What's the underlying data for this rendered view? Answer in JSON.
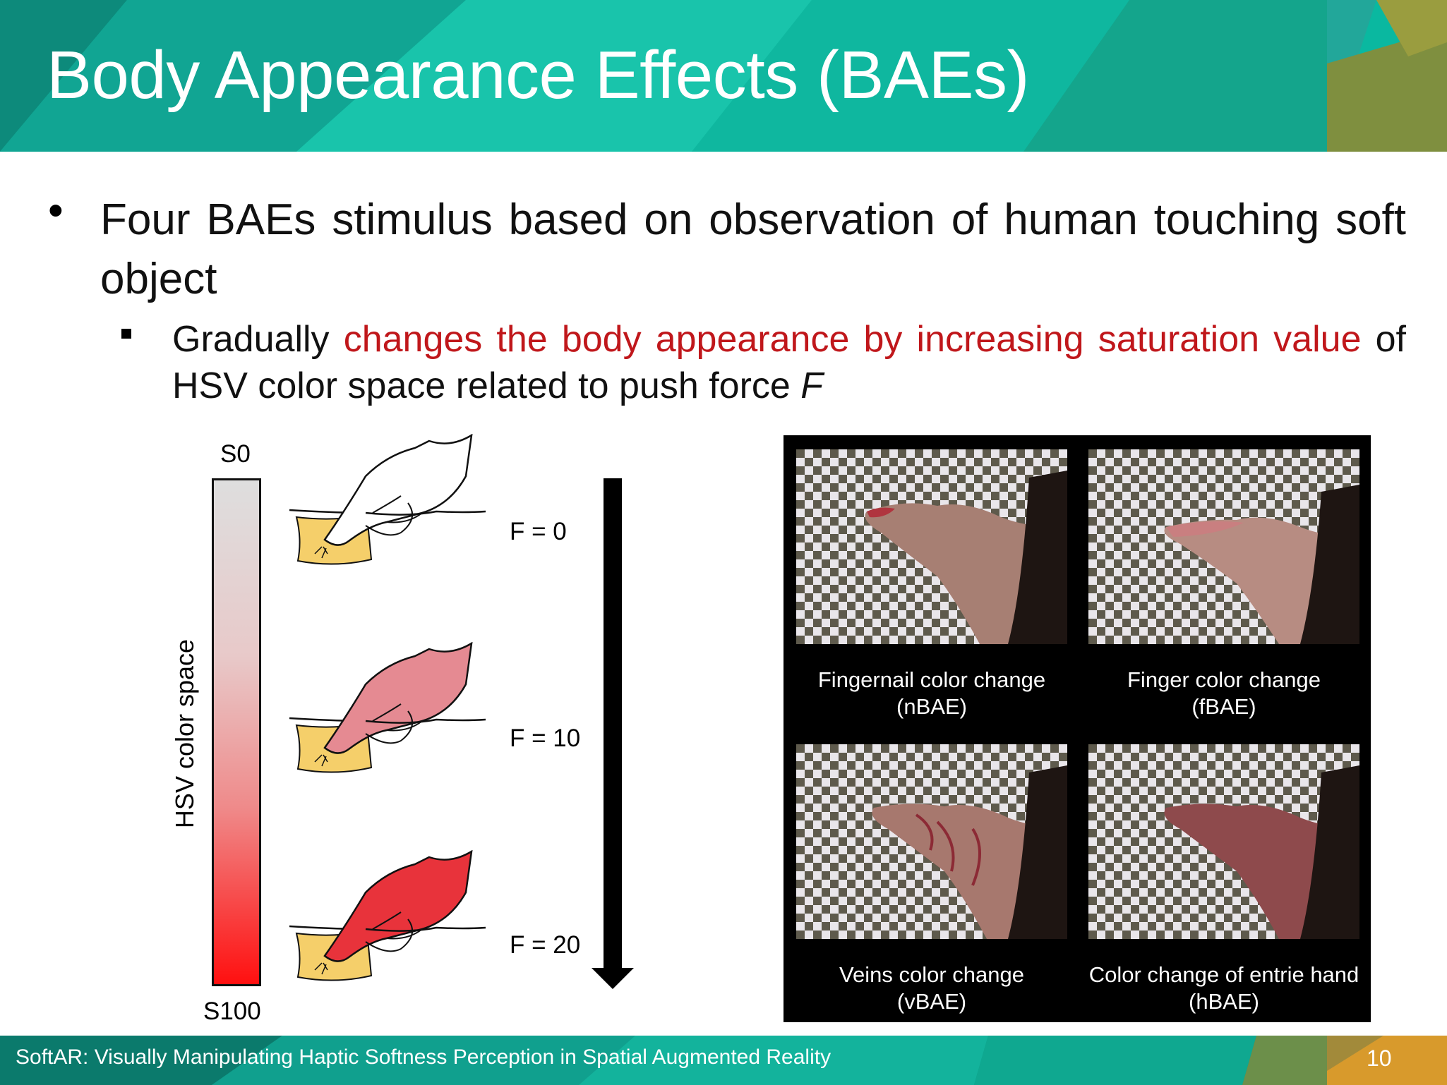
{
  "slide": {
    "title": "Body Appearance Effects (BAEs)",
    "bullet_1": {
      "marker": "•",
      "text": "Four BAEs stimulus based on observation of human touching soft object"
    },
    "bullet_2": {
      "text_start": "Gradually ",
      "text_highlight": "changes the body appearance by increasing saturation value",
      "text_mid": " of HSV color space related to push force ",
      "text_var": "F",
      "highlight_color": "#c0171b"
    },
    "figure_left": {
      "top_label": "S0",
      "bottom_label": "S100",
      "axis_label": "HSV color space",
      "force_labels": [
        "F = 0",
        "F = 10",
        "F = 20"
      ],
      "hand_colors": [
        "#ffffff",
        "#e58a92",
        "#e8333b"
      ],
      "sponge_color": "#f5cf6a"
    },
    "figure_right": {
      "captions": [
        {
          "line1": "Fingernail color change",
          "line2": "(nBAE)"
        },
        {
          "line1": "Finger color change",
          "line2": "(fBAE)"
        },
        {
          "line1": "Veins color change",
          "line2": "(vBAE)"
        },
        {
          "line1": "Color change of entrie hand",
          "line2": "(hBAE)"
        }
      ]
    },
    "footer": {
      "text": "SoftAR: Visually Manipulating Haptic Softness Perception in Spatial Augmented Reality",
      "page_number": "10"
    },
    "colors": {
      "header_teal": "#0ab8a0",
      "header_dark": "#0f7a6e",
      "accent_olive": "#9a9a3a",
      "accent_orange": "#e6a22c"
    }
  }
}
